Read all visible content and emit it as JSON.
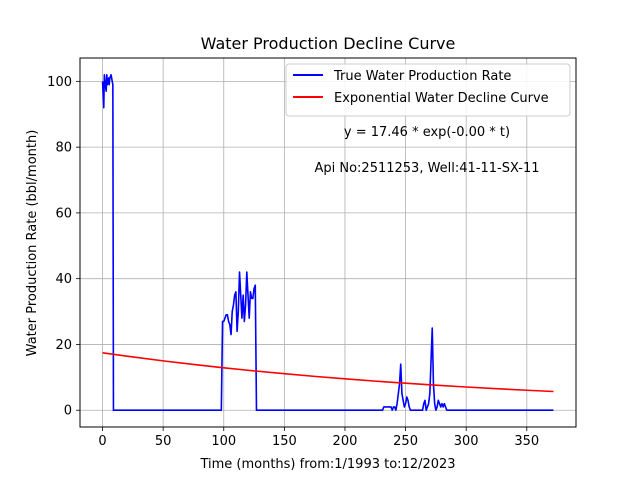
{
  "chart_data": {
    "type": "line",
    "title": "Water Production Decline Curve",
    "xlabel": "Time (months) from:1/1993 to:12/2023",
    "ylabel": "Water Production Rate (bbl/month)",
    "xlim": [
      -18.6,
      390.6
    ],
    "ylim": [
      -5.1,
      107.1
    ],
    "xticks": [
      0,
      50,
      100,
      150,
      200,
      250,
      300,
      350
    ],
    "yticks": [
      0,
      20,
      40,
      60,
      80,
      100
    ],
    "grid": true,
    "legend_position": "top-right",
    "annotations": [
      "y = 17.46 * exp(-0.00 * t)",
      "Api No:2511253, Well:41-11-SX-11"
    ],
    "series": [
      {
        "name": "True Water Production Rate",
        "color": "#0000ff",
        "points": [
          [
            0,
            100
          ],
          [
            1,
            92
          ],
          [
            1.5,
            102
          ],
          [
            2,
            100
          ],
          [
            3,
            97
          ],
          [
            3.5,
            102
          ],
          [
            4,
            99
          ],
          [
            5,
            101
          ],
          [
            5.5,
            99
          ],
          [
            6,
            101
          ],
          [
            7,
            102
          ],
          [
            8,
            100
          ],
          [
            8.5,
            99
          ],
          [
            9,
            0
          ],
          [
            10,
            0
          ],
          [
            98,
            0
          ],
          [
            99,
            27
          ],
          [
            100,
            27
          ],
          [
            101,
            28
          ],
          [
            102,
            29
          ],
          [
            103,
            29
          ],
          [
            104,
            27
          ],
          [
            105,
            26
          ],
          [
            106,
            23
          ],
          [
            107,
            30
          ],
          [
            108,
            32
          ],
          [
            109,
            35
          ],
          [
            110,
            36
          ],
          [
            111,
            24
          ],
          [
            112,
            30
          ],
          [
            113,
            42
          ],
          [
            114,
            35
          ],
          [
            115,
            28
          ],
          [
            116,
            35
          ],
          [
            117,
            27
          ],
          [
            118,
            32
          ],
          [
            119,
            42
          ],
          [
            120,
            35
          ],
          [
            121,
            28
          ],
          [
            122,
            36
          ],
          [
            123,
            34
          ],
          [
            124,
            34
          ],
          [
            125,
            37
          ],
          [
            126,
            38
          ],
          [
            127,
            0
          ],
          [
            128,
            0
          ],
          [
            231,
            0
          ],
          [
            232,
            1
          ],
          [
            238,
            1
          ],
          [
            239,
            0
          ],
          [
            240,
            1
          ],
          [
            241,
            1
          ],
          [
            242,
            0
          ],
          [
            243,
            2
          ],
          [
            244,
            5
          ],
          [
            245,
            8
          ],
          [
            246,
            14
          ],
          [
            247,
            5
          ],
          [
            248,
            3
          ],
          [
            249,
            1
          ],
          [
            250,
            2
          ],
          [
            251,
            4
          ],
          [
            252,
            3
          ],
          [
            253,
            1
          ],
          [
            254,
            0
          ],
          [
            264,
            0
          ],
          [
            265,
            2
          ],
          [
            266,
            3
          ],
          [
            267,
            0
          ],
          [
            268,
            1
          ],
          [
            269,
            2
          ],
          [
            270,
            5
          ],
          [
            271,
            15
          ],
          [
            272,
            25
          ],
          [
            273,
            8
          ],
          [
            274,
            2
          ],
          [
            275,
            0
          ],
          [
            276,
            1
          ],
          [
            277,
            3
          ],
          [
            278,
            2
          ],
          [
            279,
            1
          ],
          [
            280,
            2
          ],
          [
            281,
            1
          ],
          [
            282,
            2
          ],
          [
            283,
            1
          ],
          [
            284,
            0
          ],
          [
            372,
            0
          ]
        ]
      },
      {
        "name": "Exponential Water Decline Curve",
        "color": "#ff0000",
        "points": [
          [
            0,
            17.46
          ],
          [
            25,
            16.19
          ],
          [
            50,
            15.01
          ],
          [
            75,
            13.92
          ],
          [
            100,
            12.91
          ],
          [
            125,
            11.97
          ],
          [
            150,
            11.1
          ],
          [
            175,
            10.29
          ],
          [
            200,
            9.54
          ],
          [
            225,
            8.85
          ],
          [
            250,
            8.21
          ],
          [
            275,
            7.61
          ],
          [
            300,
            7.06
          ],
          [
            325,
            6.54
          ],
          [
            350,
            6.07
          ],
          [
            372,
            5.69
          ]
        ]
      }
    ]
  }
}
